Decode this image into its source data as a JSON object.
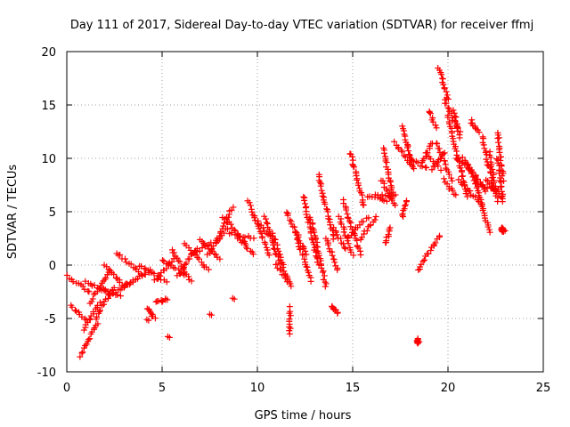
{
  "chart_data": {
    "type": "scatter",
    "title": "Day 111 of 2017, Sidereal Day-to-day VTEC variation (SDTVAR) for receiver ffmj",
    "xlabel": "GPS time / hours",
    "ylabel": "SDTVAR / TECUs",
    "xlim": [
      0,
      25
    ],
    "ylim": [
      -10,
      20
    ],
    "xticks": [
      0,
      5,
      10,
      15,
      20,
      25
    ],
    "xtick_labels": [
      "0",
      "5",
      "10",
      "15",
      "20",
      "25"
    ],
    "yticks": [
      -10,
      -5,
      0,
      5,
      10,
      15,
      20
    ],
    "ytick_labels": [
      "-10",
      "-5",
      "0",
      "5",
      "10",
      "15",
      "20"
    ],
    "grid": true,
    "marker": "+",
    "color": "#ff0000",
    "segments": [
      [
        0.0,
        -1.0,
        1.2,
        -2.5
      ],
      [
        0.2,
        -3.8,
        1.0,
        -5.2
      ],
      [
        0.7,
        -8.5,
        1.6,
        -5.5
      ],
      [
        0.9,
        -6.0,
        1.7,
        -3.5
      ],
      [
        1.0,
        -1.5,
        2.1,
        -2.5
      ],
      [
        1.2,
        -3.5,
        2.3,
        -0.5
      ],
      [
        1.5,
        -5.0,
        2.5,
        -2.0
      ],
      [
        1.8,
        -2.0,
        2.8,
        -3.0
      ],
      [
        2.0,
        0.0,
        3.0,
        -2.0
      ],
      [
        2.2,
        -2.8,
        3.5,
        -1.5
      ],
      [
        2.6,
        1.2,
        4.0,
        -1.0
      ],
      [
        3.0,
        -2.0,
        4.4,
        -0.5
      ],
      [
        3.8,
        0.0,
        5.2,
        -1.5
      ],
      [
        4.2,
        -4.0,
        4.6,
        -5.0
      ],
      [
        4.6,
        -1.5,
        5.6,
        0.5
      ],
      [
        4.7,
        -3.5,
        5.3,
        -3.2
      ],
      [
        5.0,
        0.5,
        6.2,
        -1.0
      ],
      [
        5.5,
        1.5,
        6.5,
        -1.5
      ],
      [
        5.8,
        -1.0,
        6.8,
        1.5
      ],
      [
        6.2,
        2.0,
        7.4,
        -0.5
      ],
      [
        6.6,
        1.0,
        7.6,
        2.0
      ],
      [
        7.0,
        2.5,
        8.0,
        0.5
      ],
      [
        7.4,
        1.0,
        8.4,
        3.5
      ],
      [
        7.8,
        2.0,
        8.7,
        5.5
      ],
      [
        8.2,
        4.5,
        9.4,
        2.0
      ],
      [
        8.5,
        3.0,
        9.8,
        2.5
      ],
      [
        9.0,
        2.5,
        9.8,
        1.0
      ],
      [
        9.5,
        6.0,
        10.6,
        1.0
      ],
      [
        10.0,
        4.0,
        10.8,
        2.5
      ],
      [
        10.4,
        4.5,
        11.2,
        0.0
      ],
      [
        10.8,
        3.0,
        11.6,
        -1.5
      ],
      [
        11.0,
        0.0,
        11.8,
        -2.0
      ],
      [
        11.7,
        -4.0,
        11.7,
        -6.5
      ],
      [
        11.5,
        5.0,
        12.6,
        1.0
      ],
      [
        12.0,
        3.0,
        12.8,
        -1.5
      ],
      [
        12.4,
        6.5,
        13.2,
        0.0
      ],
      [
        12.8,
        4.5,
        13.6,
        -2.0
      ],
      [
        13.2,
        8.5,
        14.0,
        2.5
      ],
      [
        13.6,
        2.5,
        14.2,
        -0.5
      ],
      [
        14.0,
        3.5,
        14.6,
        1.5
      ],
      [
        14.3,
        4.5,
        15.0,
        1.0
      ],
      [
        14.5,
        6.0,
        15.4,
        1.0
      ],
      [
        13.9,
        -3.8,
        14.2,
        -4.5
      ],
      [
        14.7,
        2.5,
        15.8,
        4.5
      ],
      [
        14.9,
        10.5,
        15.6,
        5.5
      ],
      [
        15.4,
        2.5,
        16.2,
        4.5
      ],
      [
        15.8,
        6.5,
        16.8,
        6.0
      ],
      [
        16.2,
        6.5,
        17.2,
        6.5
      ],
      [
        16.5,
        8.0,
        17.2,
        5.5
      ],
      [
        16.6,
        11.0,
        17.1,
        6.5
      ],
      [
        16.7,
        2.0,
        17.0,
        3.5
      ],
      [
        17.2,
        11.5,
        18.0,
        9.5
      ],
      [
        17.6,
        13.0,
        18.2,
        9.0
      ],
      [
        17.8,
        6.0,
        17.6,
        4.5
      ],
      [
        18.0,
        10.0,
        18.9,
        9.0
      ],
      [
        18.4,
        -0.5,
        19.6,
        2.8
      ],
      [
        18.6,
        9.5,
        19.2,
        11.5
      ],
      [
        18.4,
        -7.0,
        18.4,
        -7.3
      ],
      [
        18.8,
        10.5,
        19.6,
        9.0
      ],
      [
        19.0,
        14.5,
        19.4,
        12.8
      ],
      [
        19.2,
        9.0,
        19.8,
        10.5
      ],
      [
        19.4,
        11.5,
        20.2,
        8.0
      ],
      [
        19.5,
        18.5,
        20.0,
        15.5
      ],
      [
        19.8,
        15.5,
        20.6,
        12.5
      ],
      [
        19.8,
        8.0,
        20.4,
        6.5
      ],
      [
        20.0,
        14.0,
        21.0,
        6.5
      ],
      [
        20.3,
        14.5,
        20.6,
        12.0
      ],
      [
        20.4,
        10.0,
        21.2,
        9.0
      ],
      [
        20.6,
        8.0,
        21.8,
        5.5
      ],
      [
        20.8,
        10.0,
        21.6,
        7.5
      ],
      [
        21.0,
        9.5,
        22.0,
        7.0
      ],
      [
        21.2,
        13.5,
        21.6,
        12.5
      ],
      [
        21.4,
        8.0,
        22.2,
        3.0
      ],
      [
        21.6,
        7.5,
        22.6,
        7.0
      ],
      [
        21.8,
        12.0,
        22.4,
        7.0
      ],
      [
        22.0,
        8.0,
        22.8,
        6.5
      ],
      [
        22.2,
        10.5,
        22.6,
        6.0
      ],
      [
        22.6,
        12.5,
        22.9,
        8.0
      ],
      [
        22.6,
        10.0,
        22.9,
        6.0
      ],
      [
        22.8,
        3.5,
        22.9,
        3.2
      ]
    ],
    "isolated_points": [
      [
        5.3,
        -6.7
      ],
      [
        7.5,
        -4.6
      ],
      [
        8.7,
        -3.1
      ],
      [
        18.4,
        -7.1
      ],
      [
        22.9,
        3.3
      ],
      [
        4.2,
        -5.1
      ]
    ]
  }
}
